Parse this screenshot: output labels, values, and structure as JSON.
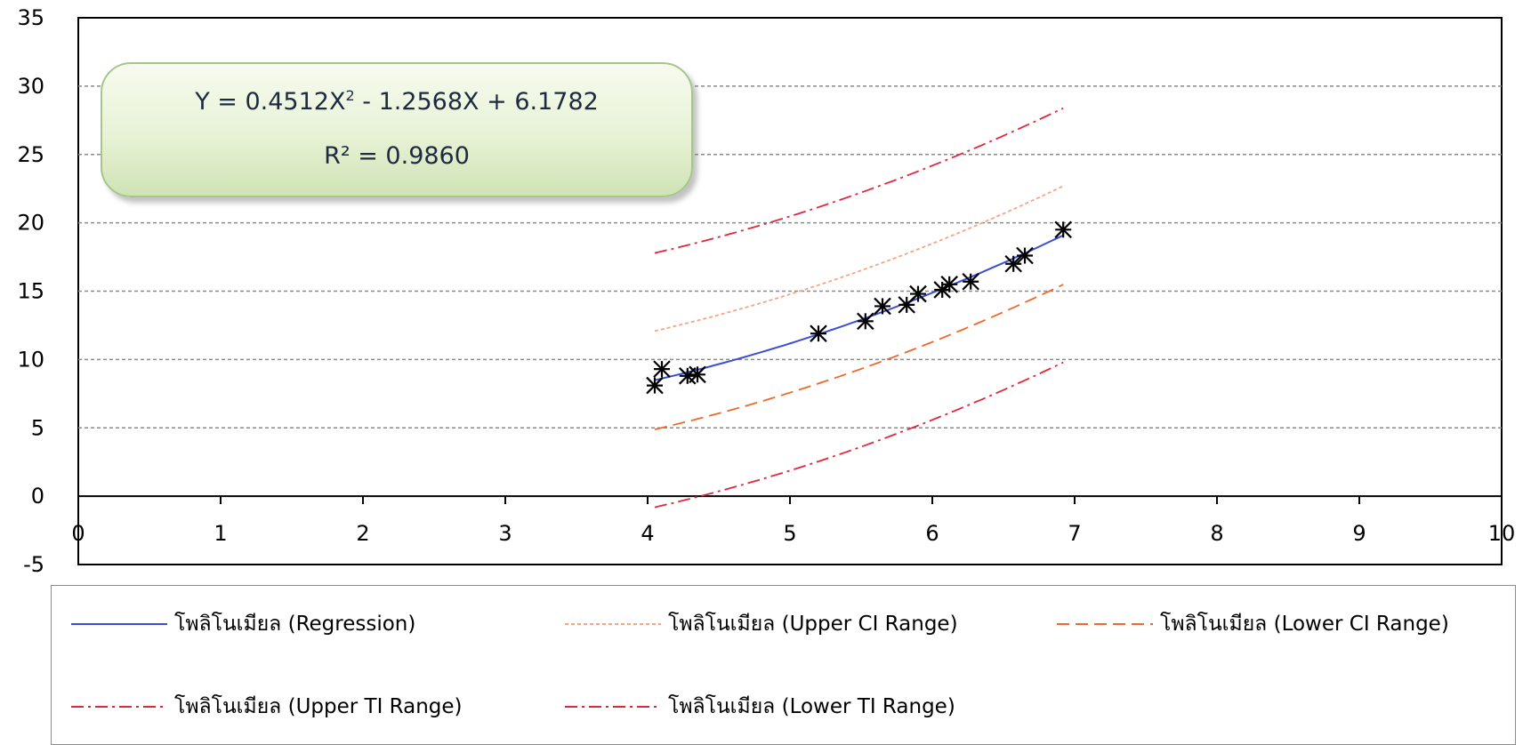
{
  "chart_data": {
    "type": "scatter",
    "title": "",
    "xlabel": "",
    "ylabel": "",
    "xlim": [
      0,
      10
    ],
    "ylim": [
      -5,
      35
    ],
    "x_ticks": [
      "0",
      "1",
      "2",
      "3",
      "4",
      "5",
      "6",
      "7",
      "8",
      "9",
      "10"
    ],
    "y_ticks": [
      "35",
      "30",
      "25",
      "20",
      "15",
      "10",
      "5",
      "0",
      "-5"
    ],
    "grid": "horizontal dashed",
    "legend_position": "bottom",
    "annotation": {
      "equation_main": "Y = 0.4512X",
      "equation_exponent": "2",
      "equation_rest": " - 1.2568X + 6.1782",
      "r_squared": "R² = 0.9860"
    },
    "points": [
      {
        "x": 4.05,
        "y": 8.1
      },
      {
        "x": 4.1,
        "y": 9.3
      },
      {
        "x": 4.28,
        "y": 8.8
      },
      {
        "x": 4.35,
        "y": 8.9
      },
      {
        "x": 5.2,
        "y": 11.9
      },
      {
        "x": 5.53,
        "y": 12.8
      },
      {
        "x": 5.65,
        "y": 13.9
      },
      {
        "x": 5.82,
        "y": 14.0
      },
      {
        "x": 5.9,
        "y": 14.8
      },
      {
        "x": 6.07,
        "y": 15.1
      },
      {
        "x": 6.12,
        "y": 15.5
      },
      {
        "x": 6.27,
        "y": 15.7
      },
      {
        "x": 6.57,
        "y": 17.0
      },
      {
        "x": 6.65,
        "y": 17.6
      },
      {
        "x": 6.92,
        "y": 19.5
      }
    ],
    "curve_x_range": [
      4.05,
      6.92
    ],
    "series": [
      {
        "name": "โพลิโนเมียล (Regression)",
        "coefficients": [
          0.4512,
          -1.2568,
          6.1782
        ],
        "offset": 0,
        "color": "#3b4fd6",
        "dash": ""
      },
      {
        "name": "โพลิโนเมียล (Upper CI Range)",
        "coefficients": [
          0.4512,
          -1.2568,
          6.1782
        ],
        "offset": 3.6,
        "color": "#f4a582",
        "dash": "4,3"
      },
      {
        "name": "โพลิโนเมียล (Lower CI Range)",
        "coefficients": [
          0.4512,
          -1.2568,
          6.1782
        ],
        "offset": -3.6,
        "color": "#ec6a2b",
        "dash": "14,7"
      },
      {
        "name": "โพลิโนเมียล (Upper TI Range)",
        "coefficients": [
          0.4512,
          -1.2568,
          6.1782
        ],
        "offset": 9.3,
        "color": "#e0283c",
        "dash": "14,5,3,5"
      },
      {
        "name": "โพลิโนเมียล (Lower TI Range)",
        "coefficients": [
          0.4512,
          -1.2568,
          6.1782
        ],
        "offset": -9.3,
        "color": "#e0283c",
        "dash": "14,5,3,5"
      }
    ],
    "marker_color": "#000000"
  }
}
